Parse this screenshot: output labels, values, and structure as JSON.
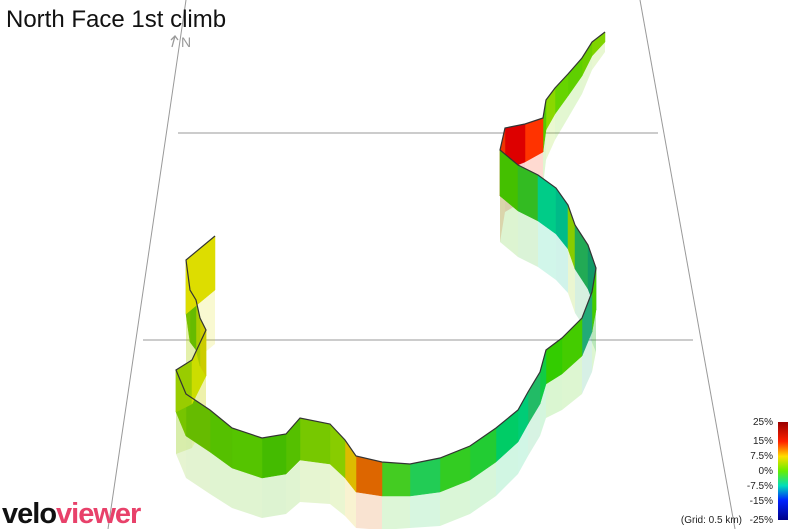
{
  "title": "North Face 1st climb",
  "compass": "N",
  "logo": {
    "part1": "velo",
    "part2": "viewer"
  },
  "legend": {
    "labels": [
      "25%",
      "15%",
      "7.5%",
      "0%",
      "-7.5%",
      "-15%",
      "-25%"
    ],
    "grid_note": "(Grid: 0.5 km)"
  }
}
